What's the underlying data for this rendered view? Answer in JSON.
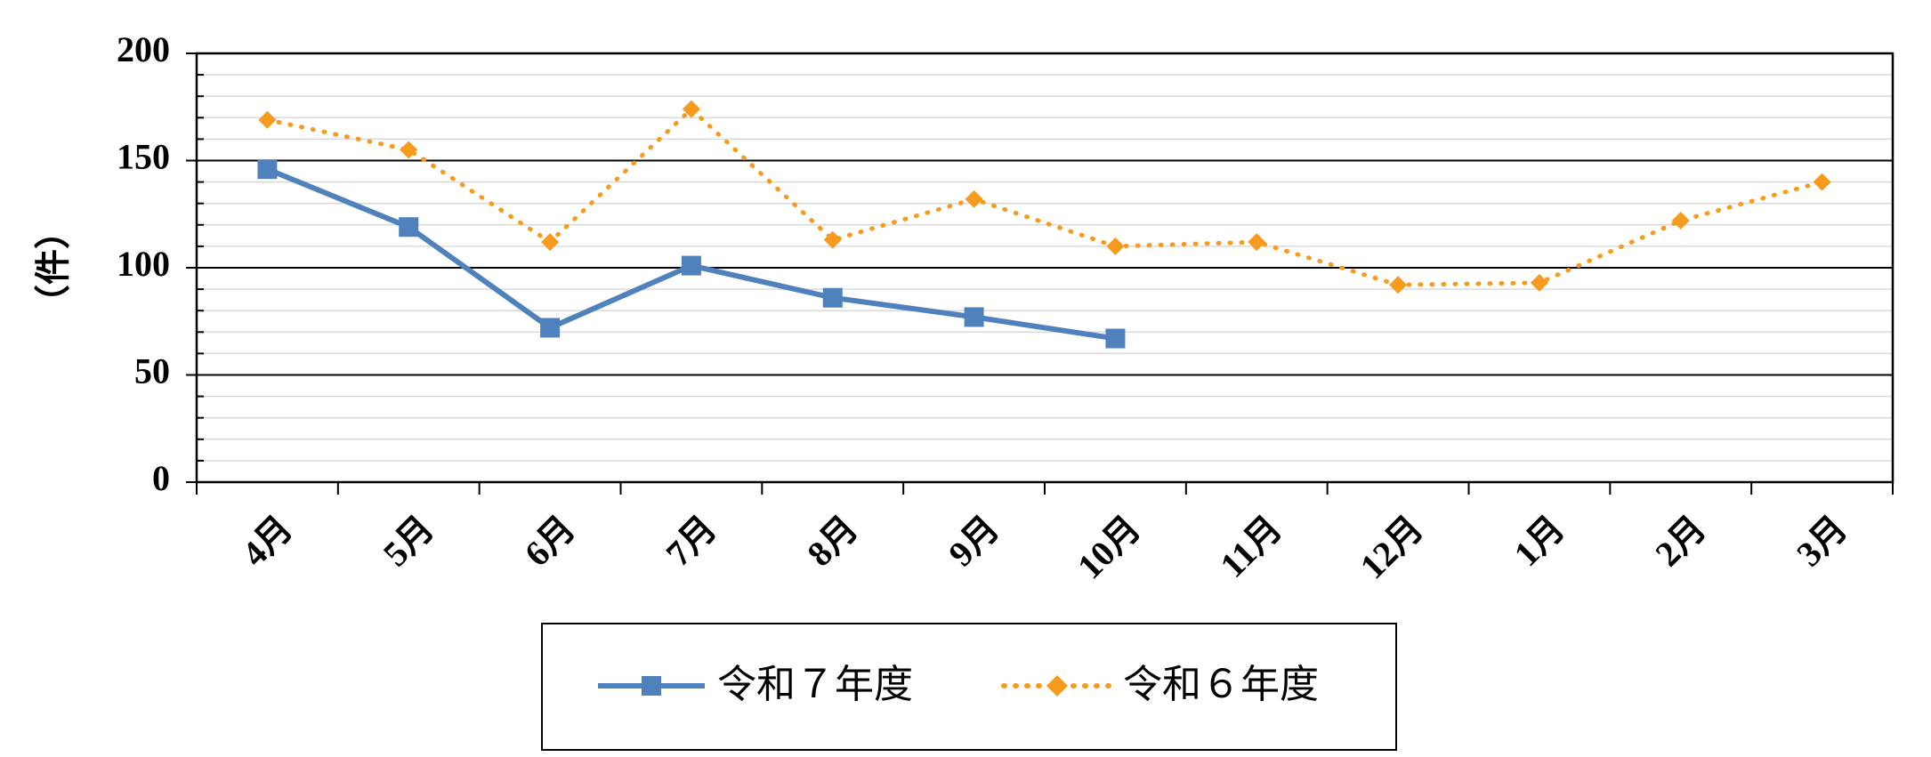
{
  "chart_data": {
    "type": "line",
    "title": "",
    "xlabel": "",
    "ylabel": "（件）",
    "categories": [
      "4月",
      "5月",
      "6月",
      "7月",
      "8月",
      "9月",
      "10月",
      "11月",
      "12月",
      "1月",
      "2月",
      "3月"
    ],
    "ylim": [
      0,
      200
    ],
    "yticks": [
      "0",
      "50",
      "100",
      "150",
      "200"
    ],
    "major_grid": true,
    "minor_grid": true,
    "legend_position": "bottom",
    "series": [
      {
        "name": "令和７年度",
        "values": [
          146,
          119,
          72,
          101,
          86,
          77,
          67,
          null,
          null,
          null,
          null,
          null
        ],
        "color": "#4f81bd",
        "style": "solid",
        "marker": "square"
      },
      {
        "name": "令和６年度",
        "values": [
          169,
          155,
          112,
          174,
          113,
          132,
          110,
          112,
          92,
          93,
          122,
          140
        ],
        "color": "#f79b1e",
        "style": "dotted",
        "marker": "diamond"
      }
    ]
  }
}
